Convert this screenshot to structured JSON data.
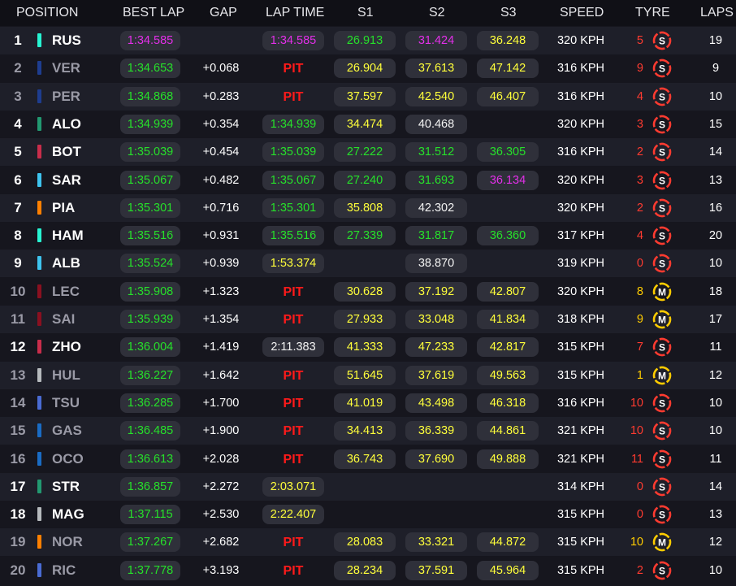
{
  "headers": {
    "position": "POSITION",
    "best_lap": "BEST LAP",
    "gap": "GAP",
    "lap_time": "LAP TIME",
    "s1": "S1",
    "s2": "S2",
    "s3": "S3",
    "speed": "SPEED",
    "tyre": "TYRE",
    "laps": "LAPS"
  },
  "team_colors": {
    "mercedes": "#27f4d2",
    "red_bull": "#1e3d8f",
    "aston_martin": "#229971",
    "sauber": "#c92d4b",
    "williams": "#3ec4ef",
    "mclaren": "#ff8000",
    "ferrari": "#8a1020",
    "haas": "#b6babd",
    "rb": "#4a6cd4",
    "alpine": "#1a6cc4"
  },
  "time_colors": {
    "green": "#26e02a",
    "purple": "#e22fe8",
    "yellow": "#ffff3a",
    "white": "#f2f2f2"
  },
  "tyre_colors": {
    "soft": "#ff3b30",
    "medium": "#ffcc00"
  },
  "rows": [
    {
      "pos": "1",
      "code": "RUS",
      "team": "mercedes",
      "dim": false,
      "best": "1:34.585",
      "best_c": "purple",
      "gap": "",
      "lap": "1:34.585",
      "lap_c": "purple",
      "s1": "26.913",
      "s1_c": "green",
      "s2": "31.424",
      "s2_c": "purple",
      "s3": "36.248",
      "s3_c": "yellow",
      "speed": "320 KPH",
      "age": "5",
      "tyre": "S",
      "tyre_icon": "soft-tyre-icon",
      "laps": "19"
    },
    {
      "pos": "2",
      "code": "VER",
      "team": "red_bull",
      "dim": true,
      "best": "1:34.653",
      "best_c": "green",
      "gap": "+0.068",
      "lap": "PIT",
      "lap_c": "pit",
      "s1": "26.904",
      "s1_c": "yellow",
      "s2": "37.613",
      "s2_c": "yellow",
      "s3": "47.142",
      "s3_c": "yellow",
      "speed": "316 KPH",
      "age": "9",
      "tyre": "S",
      "tyre_icon": "soft-tyre-icon",
      "laps": "9"
    },
    {
      "pos": "3",
      "code": "PER",
      "team": "red_bull",
      "dim": true,
      "best": "1:34.868",
      "best_c": "green",
      "gap": "+0.283",
      "lap": "PIT",
      "lap_c": "pit",
      "s1": "37.597",
      "s1_c": "yellow",
      "s2": "42.540",
      "s2_c": "yellow",
      "s3": "46.407",
      "s3_c": "yellow",
      "speed": "316 KPH",
      "age": "4",
      "tyre": "S",
      "tyre_icon": "soft-tyre-icon",
      "laps": "10"
    },
    {
      "pos": "4",
      "code": "ALO",
      "team": "aston_martin",
      "dim": false,
      "best": "1:34.939",
      "best_c": "green",
      "gap": "+0.354",
      "lap": "1:34.939",
      "lap_c": "green",
      "s1": "34.474",
      "s1_c": "yellow",
      "s2": "40.468",
      "s2_c": "white",
      "s3": "",
      "s3_c": "none",
      "speed": "320 KPH",
      "age": "3",
      "tyre": "S",
      "tyre_icon": "soft-tyre-icon",
      "laps": "15"
    },
    {
      "pos": "5",
      "code": "BOT",
      "team": "sauber",
      "dim": false,
      "best": "1:35.039",
      "best_c": "green",
      "gap": "+0.454",
      "lap": "1:35.039",
      "lap_c": "green",
      "s1": "27.222",
      "s1_c": "green",
      "s2": "31.512",
      "s2_c": "green",
      "s3": "36.305",
      "s3_c": "green",
      "speed": "316 KPH",
      "age": "2",
      "tyre": "S",
      "tyre_icon": "soft-tyre-icon",
      "laps": "14"
    },
    {
      "pos": "6",
      "code": "SAR",
      "team": "williams",
      "dim": false,
      "best": "1:35.067",
      "best_c": "green",
      "gap": "+0.482",
      "lap": "1:35.067",
      "lap_c": "green",
      "s1": "27.240",
      "s1_c": "green",
      "s2": "31.693",
      "s2_c": "green",
      "s3": "36.134",
      "s3_c": "purple",
      "speed": "320 KPH",
      "age": "3",
      "tyre": "S",
      "tyre_icon": "soft-tyre-icon",
      "laps": "13"
    },
    {
      "pos": "7",
      "code": "PIA",
      "team": "mclaren",
      "dim": false,
      "best": "1:35.301",
      "best_c": "green",
      "gap": "+0.716",
      "lap": "1:35.301",
      "lap_c": "green",
      "s1": "35.808",
      "s1_c": "yellow",
      "s2": "42.302",
      "s2_c": "white",
      "s3": "",
      "s3_c": "none",
      "speed": "320 KPH",
      "age": "2",
      "tyre": "S",
      "tyre_icon": "soft-tyre-icon",
      "laps": "16"
    },
    {
      "pos": "8",
      "code": "HAM",
      "team": "mercedes",
      "dim": false,
      "best": "1:35.516",
      "best_c": "green",
      "gap": "+0.931",
      "lap": "1:35.516",
      "lap_c": "green",
      "s1": "27.339",
      "s1_c": "green",
      "s2": "31.817",
      "s2_c": "green",
      "s3": "36.360",
      "s3_c": "green",
      "speed": "317 KPH",
      "age": "4",
      "tyre": "S",
      "tyre_icon": "soft-tyre-icon",
      "laps": "20"
    },
    {
      "pos": "9",
      "code": "ALB",
      "team": "williams",
      "dim": false,
      "best": "1:35.524",
      "best_c": "green",
      "gap": "+0.939",
      "lap": "1:53.374",
      "lap_c": "yellow",
      "s1": "",
      "s1_c": "none",
      "s2": "38.870",
      "s2_c": "white",
      "s3": "",
      "s3_c": "none",
      "speed": "319 KPH",
      "age": "0",
      "tyre": "S",
      "tyre_icon": "soft-tyre-icon",
      "laps": "10"
    },
    {
      "pos": "10",
      "code": "LEC",
      "team": "ferrari",
      "dim": true,
      "best": "1:35.908",
      "best_c": "green",
      "gap": "+1.323",
      "lap": "PIT",
      "lap_c": "pit",
      "s1": "30.628",
      "s1_c": "yellow",
      "s2": "37.192",
      "s2_c": "yellow",
      "s3": "42.807",
      "s3_c": "yellow",
      "speed": "320 KPH",
      "age": "8",
      "tyre": "M",
      "tyre_icon": "medium-tyre-icon",
      "laps": "18"
    },
    {
      "pos": "11",
      "code": "SAI",
      "team": "ferrari",
      "dim": true,
      "best": "1:35.939",
      "best_c": "green",
      "gap": "+1.354",
      "lap": "PIT",
      "lap_c": "pit",
      "s1": "27.933",
      "s1_c": "yellow",
      "s2": "33.048",
      "s2_c": "yellow",
      "s3": "41.834",
      "s3_c": "yellow",
      "speed": "318 KPH",
      "age": "9",
      "tyre": "M",
      "tyre_icon": "medium-tyre-icon",
      "laps": "17"
    },
    {
      "pos": "12",
      "code": "ZHO",
      "team": "sauber",
      "dim": false,
      "best": "1:36.004",
      "best_c": "green",
      "gap": "+1.419",
      "lap": "2:11.383",
      "lap_c": "white",
      "s1": "41.333",
      "s1_c": "yellow",
      "s2": "47.233",
      "s2_c": "yellow",
      "s3": "42.817",
      "s3_c": "yellow",
      "speed": "315 KPH",
      "age": "7",
      "tyre": "S",
      "tyre_icon": "soft-tyre-icon",
      "laps": "11"
    },
    {
      "pos": "13",
      "code": "HUL",
      "team": "haas",
      "dim": true,
      "best": "1:36.227",
      "best_c": "green",
      "gap": "+1.642",
      "lap": "PIT",
      "lap_c": "pit",
      "s1": "51.645",
      "s1_c": "yellow",
      "s2": "37.619",
      "s2_c": "yellow",
      "s3": "49.563",
      "s3_c": "yellow",
      "speed": "315 KPH",
      "age": "1",
      "tyre": "M",
      "tyre_icon": "medium-tyre-icon",
      "laps": "12"
    },
    {
      "pos": "14",
      "code": "TSU",
      "team": "rb",
      "dim": true,
      "best": "1:36.285",
      "best_c": "green",
      "gap": "+1.700",
      "lap": "PIT",
      "lap_c": "pit",
      "s1": "41.019",
      "s1_c": "yellow",
      "s2": "43.498",
      "s2_c": "yellow",
      "s3": "46.318",
      "s3_c": "yellow",
      "speed": "316 KPH",
      "age": "10",
      "tyre": "S",
      "tyre_icon": "soft-tyre-icon",
      "laps": "10"
    },
    {
      "pos": "15",
      "code": "GAS",
      "team": "alpine",
      "dim": true,
      "best": "1:36.485",
      "best_c": "green",
      "gap": "+1.900",
      "lap": "PIT",
      "lap_c": "pit",
      "s1": "34.413",
      "s1_c": "yellow",
      "s2": "36.339",
      "s2_c": "yellow",
      "s3": "44.861",
      "s3_c": "yellow",
      "speed": "321 KPH",
      "age": "10",
      "tyre": "S",
      "tyre_icon": "soft-tyre-icon",
      "laps": "10"
    },
    {
      "pos": "16",
      "code": "OCO",
      "team": "alpine",
      "dim": true,
      "best": "1:36.613",
      "best_c": "green",
      "gap": "+2.028",
      "lap": "PIT",
      "lap_c": "pit",
      "s1": "36.743",
      "s1_c": "yellow",
      "s2": "37.690",
      "s2_c": "yellow",
      "s3": "49.888",
      "s3_c": "yellow",
      "speed": "321 KPH",
      "age": "11",
      "tyre": "S",
      "tyre_icon": "soft-tyre-icon",
      "laps": "11"
    },
    {
      "pos": "17",
      "code": "STR",
      "team": "aston_martin",
      "dim": false,
      "best": "1:36.857",
      "best_c": "green",
      "gap": "+2.272",
      "lap": "2:03.071",
      "lap_c": "yellow",
      "s1": "",
      "s1_c": "none",
      "s2": "",
      "s2_c": "none",
      "s3": "",
      "s3_c": "none",
      "speed": "314 KPH",
      "age": "0",
      "tyre": "S",
      "tyre_icon": "soft-tyre-icon",
      "laps": "14"
    },
    {
      "pos": "18",
      "code": "MAG",
      "team": "haas",
      "dim": false,
      "best": "1:37.115",
      "best_c": "green",
      "gap": "+2.530",
      "lap": "2:22.407",
      "lap_c": "yellow",
      "s1": "",
      "s1_c": "none",
      "s2": "",
      "s2_c": "none",
      "s3": "",
      "s3_c": "none",
      "speed": "315 KPH",
      "age": "0",
      "tyre": "S",
      "tyre_icon": "soft-tyre-icon",
      "laps": "13"
    },
    {
      "pos": "19",
      "code": "NOR",
      "team": "mclaren",
      "dim": true,
      "best": "1:37.267",
      "best_c": "green",
      "gap": "+2.682",
      "lap": "PIT",
      "lap_c": "pit",
      "s1": "28.083",
      "s1_c": "yellow",
      "s2": "33.321",
      "s2_c": "yellow",
      "s3": "44.872",
      "s3_c": "yellow",
      "speed": "315 KPH",
      "age": "10",
      "tyre": "M",
      "tyre_icon": "medium-tyre-icon",
      "laps": "12"
    },
    {
      "pos": "20",
      "code": "RIC",
      "team": "rb",
      "dim": true,
      "best": "1:37.778",
      "best_c": "green",
      "gap": "+3.193",
      "lap": "PIT",
      "lap_c": "pit",
      "s1": "28.234",
      "s1_c": "yellow",
      "s2": "37.591",
      "s2_c": "yellow",
      "s3": "45.964",
      "s3_c": "yellow",
      "speed": "315 KPH",
      "age": "2",
      "tyre": "S",
      "tyre_icon": "soft-tyre-icon",
      "laps": "10"
    }
  ]
}
